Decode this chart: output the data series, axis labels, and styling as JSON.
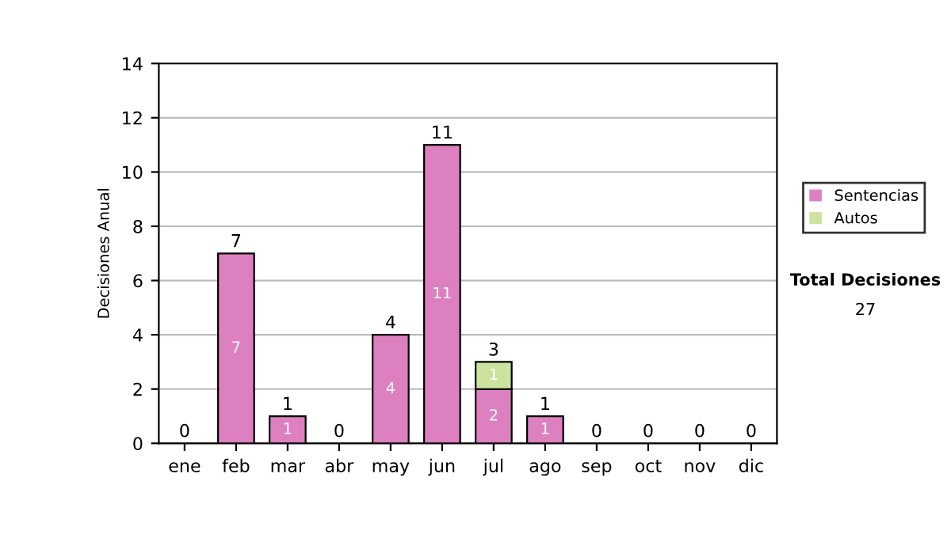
{
  "chart_data": {
    "type": "bar",
    "stacked": true,
    "ylabel": "Decisiones Anual",
    "categories": [
      "ene",
      "feb",
      "mar",
      "abr",
      "may",
      "jun",
      "jul",
      "ago",
      "sep",
      "oct",
      "nov",
      "dic"
    ],
    "series": [
      {
        "name": "Sentencias",
        "color": "#dd80c0",
        "values": [
          0,
          7,
          1,
          0,
          4,
          11,
          2,
          1,
          0,
          0,
          0,
          0
        ],
        "value_labels": [
          null,
          "7",
          "1",
          null,
          "4",
          "11",
          "2",
          "1",
          null,
          null,
          null,
          null
        ]
      },
      {
        "name": "Autos",
        "color": "#cce3a0",
        "values": [
          0,
          0,
          0,
          0,
          0,
          0,
          1,
          0,
          0,
          0,
          0,
          0
        ],
        "value_labels": [
          null,
          null,
          null,
          null,
          null,
          null,
          "1",
          null,
          null,
          null,
          null,
          null
        ]
      }
    ],
    "totals": [
      "0",
      "7",
      "1",
      "0",
      "4",
      "11",
      "3",
      "1",
      "0",
      "0",
      "0",
      "0"
    ],
    "ylim": [
      0,
      14
    ],
    "yticks": [
      0,
      2,
      4,
      6,
      8,
      10,
      12,
      14
    ],
    "grid": "y",
    "legend": "right",
    "annotations": [
      "Total Decisiones",
      "27"
    ]
  }
}
